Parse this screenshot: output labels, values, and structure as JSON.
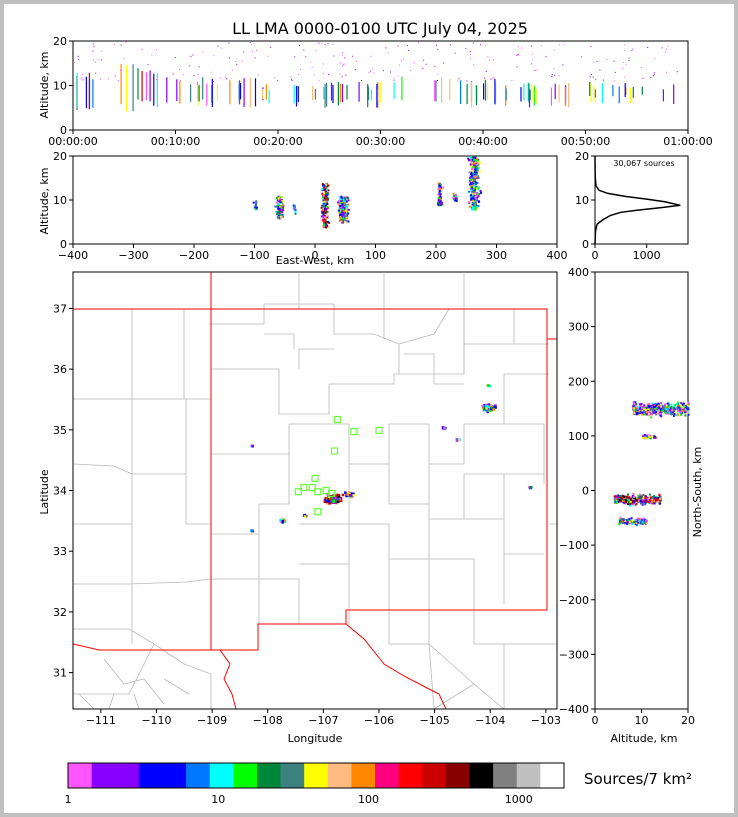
{
  "chart_data": [
    {
      "type": "scatter",
      "panel": "altitude-vs-time",
      "title": "LL LMA 0000-0100 UTC July 04, 2025",
      "ylabel": "Altitude, km",
      "xlim": [
        "00:00:00",
        "01:00:00"
      ],
      "ylim": [
        0,
        20
      ],
      "xticks": [
        "00:00:00",
        "00:10:00",
        "00:20:00",
        "00:30:00",
        "00:40:00",
        "00:50:00",
        "01:00:00"
      ],
      "yticks": [
        "0",
        "10",
        "20"
      ],
      "activity": [
        {
          "minute": 0,
          "bottom": 4,
          "top": 13
        },
        {
          "minute": 2,
          "bottom": 5,
          "top": 14
        },
        {
          "minute": 4,
          "bottom": 4,
          "top": 15
        },
        {
          "minute": 6,
          "bottom": 5,
          "top": 14
        },
        {
          "minute": 8,
          "bottom": 5,
          "top": 13
        },
        {
          "minute": 10,
          "bottom": 5,
          "top": 12
        },
        {
          "minute": 14,
          "bottom": 5,
          "top": 12
        },
        {
          "minute": 18,
          "bottom": 5,
          "top": 11
        },
        {
          "minute": 22,
          "bottom": 5,
          "top": 11
        },
        {
          "minute": 26,
          "bottom": 5,
          "top": 11
        },
        {
          "minute": 30,
          "bottom": 5,
          "top": 12
        },
        {
          "minute": 34,
          "bottom": 5,
          "top": 12
        },
        {
          "minute": 38,
          "bottom": 5,
          "top": 12
        },
        {
          "minute": 42,
          "bottom": 5,
          "top": 11
        },
        {
          "minute": 46,
          "bottom": 5,
          "top": 11
        },
        {
          "minute": 50,
          "bottom": 6,
          "top": 11
        },
        {
          "minute": 54,
          "bottom": 6,
          "top": 10
        },
        {
          "minute": 58,
          "bottom": 5,
          "top": 11
        }
      ]
    },
    {
      "type": "scatter",
      "panel": "altitude-vs-east-west",
      "xlabel": "East-West, km",
      "ylabel": "Altitude, km",
      "xlim": [
        -400,
        400
      ],
      "ylim": [
        0,
        20
      ],
      "xticks": [
        "−400",
        "−300",
        "−200",
        "−100",
        "0",
        "100",
        "200",
        "300",
        "400"
      ],
      "yticks": [
        "0",
        "10",
        "20"
      ],
      "clusters": [
        {
          "x": 15,
          "xspread": 8,
          "zmin": 4,
          "zmax": 14,
          "peak": true
        },
        {
          "x": 45,
          "xspread": 12,
          "zmin": 5,
          "zmax": 11,
          "peak": false
        },
        {
          "x": -60,
          "xspread": 8,
          "zmin": 6,
          "zmax": 11,
          "peak": false
        },
        {
          "x": -35,
          "xspread": 3,
          "zmin": 7,
          "zmax": 9,
          "peak": false
        },
        {
          "x": 262,
          "xspread": 12,
          "zmin": 8,
          "zmax": 20,
          "peak": false
        },
        {
          "x": 205,
          "xspread": 6,
          "zmin": 9,
          "zmax": 14,
          "peak": false
        },
        {
          "x": 230,
          "xspread": 5,
          "zmin": 10,
          "zmax": 12,
          "peak": false
        },
        {
          "x": -100,
          "xspread": 4,
          "zmin": 8,
          "zmax": 10,
          "peak": false
        }
      ]
    },
    {
      "type": "line",
      "panel": "altitude-histogram",
      "annotation": "30,067 sources",
      "xlim": [
        0,
        1800
      ],
      "ylim": [
        0,
        20
      ],
      "xticks": [
        "0",
        "1000"
      ],
      "yticks": [
        "0",
        "10",
        "20"
      ],
      "points": [
        [
          0,
          -0.5
        ],
        [
          10,
          3
        ],
        [
          40,
          4.5
        ],
        [
          150,
          5.5
        ],
        [
          300,
          6.5
        ],
        [
          500,
          7.2
        ],
        [
          900,
          7.8
        ],
        [
          1300,
          8.3
        ],
        [
          1650,
          8.8
        ],
        [
          1350,
          9.6
        ],
        [
          1000,
          10.2
        ],
        [
          600,
          10.8
        ],
        [
          250,
          11.5
        ],
        [
          80,
          12.2
        ],
        [
          20,
          13.2
        ],
        [
          5,
          15
        ],
        [
          2,
          17
        ],
        [
          0,
          20
        ]
      ]
    },
    {
      "type": "scatter",
      "panel": "plan-view-map",
      "xlabel": "Longitude",
      "ylabel": "Latitude",
      "xlim": [
        -111.5,
        -102.8
      ],
      "ylim": [
        30.4,
        37.6
      ],
      "xticks": [
        "−111",
        "−110",
        "−109",
        "−108",
        "−107",
        "−106",
        "−105",
        "−104",
        "−103"
      ],
      "yticks": [
        "31",
        "32",
        "33",
        "34",
        "35",
        "36",
        "37"
      ],
      "clusters": [
        {
          "lon": -106.85,
          "lat": 33.88,
          "r": 0.15,
          "peak": true
        },
        {
          "lon": -106.55,
          "lat": 33.95,
          "r": 0.08,
          "peak": false
        },
        {
          "lon": -107.75,
          "lat": 33.52,
          "r": 0.06,
          "peak": false
        },
        {
          "lon": -107.35,
          "lat": 33.6,
          "r": 0.03,
          "peak": false
        },
        {
          "lon": -104.05,
          "lat": 35.38,
          "r": 0.12,
          "peak": false
        },
        {
          "lon": -104.6,
          "lat": 34.85,
          "r": 0.04,
          "peak": false
        },
        {
          "lon": -104.85,
          "lat": 35.05,
          "r": 0.03,
          "peak": false
        },
        {
          "lon": -104.05,
          "lat": 35.75,
          "r": 0.02,
          "peak": false
        },
        {
          "lon": -103.3,
          "lat": 34.07,
          "r": 0.02,
          "peak": false
        },
        {
          "lon": -108.3,
          "lat": 33.35,
          "r": 0.03,
          "peak": false
        },
        {
          "lon": -108.3,
          "lat": 34.75,
          "r": 0.02,
          "peak": false
        }
      ],
      "stations": [
        [
          -106.75,
          35.17
        ],
        [
          -106.45,
          34.97
        ],
        [
          -106.0,
          34.99
        ],
        [
          -106.8,
          34.65
        ],
        [
          -107.15,
          34.2
        ],
        [
          -107.2,
          34.05
        ],
        [
          -107.35,
          34.05
        ],
        [
          -107.45,
          33.98
        ],
        [
          -107.1,
          33.98
        ],
        [
          -106.95,
          34.0
        ],
        [
          -107.1,
          33.65
        ],
        [
          -106.85,
          33.95
        ]
      ]
    },
    {
      "type": "scatter",
      "panel": "north-south-vs-altitude",
      "xlabel": "Altitude, km",
      "ylabel": "North-South, km",
      "xlim": [
        0,
        20
      ],
      "ylim": [
        -400,
        400
      ],
      "xticks": [
        "0",
        "10",
        "20"
      ],
      "yticks": [
        "−400",
        "−300",
        "−200",
        "−100",
        "0",
        "100",
        "200",
        "300",
        "400"
      ],
      "clusters": [
        {
          "zmin": 4,
          "zmax": 14,
          "y": -15,
          "yspread": 12,
          "peak": true
        },
        {
          "zmin": 5,
          "zmax": 11,
          "y": -55,
          "yspread": 8,
          "peak": false
        },
        {
          "zmin": 8,
          "zmax": 20,
          "y": 150,
          "yspread": 15,
          "peak": false
        },
        {
          "zmin": 10,
          "zmax": 13,
          "y": 100,
          "yspread": 5,
          "peak": false
        }
      ]
    }
  ],
  "colorbar": {
    "label": "Sources/7 km²",
    "tick_labels": [
      "1",
      "10",
      "100",
      "1000"
    ],
    "colors": [
      "#ff55ff",
      "#8800ff",
      "#8800ff",
      "#0000ff",
      "#0000ff",
      "#0077ff",
      "#00ffff",
      "#00ff00",
      "#00883a",
      "#3d8080",
      "#ffff00",
      "#ffbb80",
      "#ff8800",
      "#ff0080",
      "#ff0000",
      "#cc0000",
      "#880000",
      "#000000",
      "#808080",
      "#c0c0c0",
      "#ffffff"
    ]
  }
}
